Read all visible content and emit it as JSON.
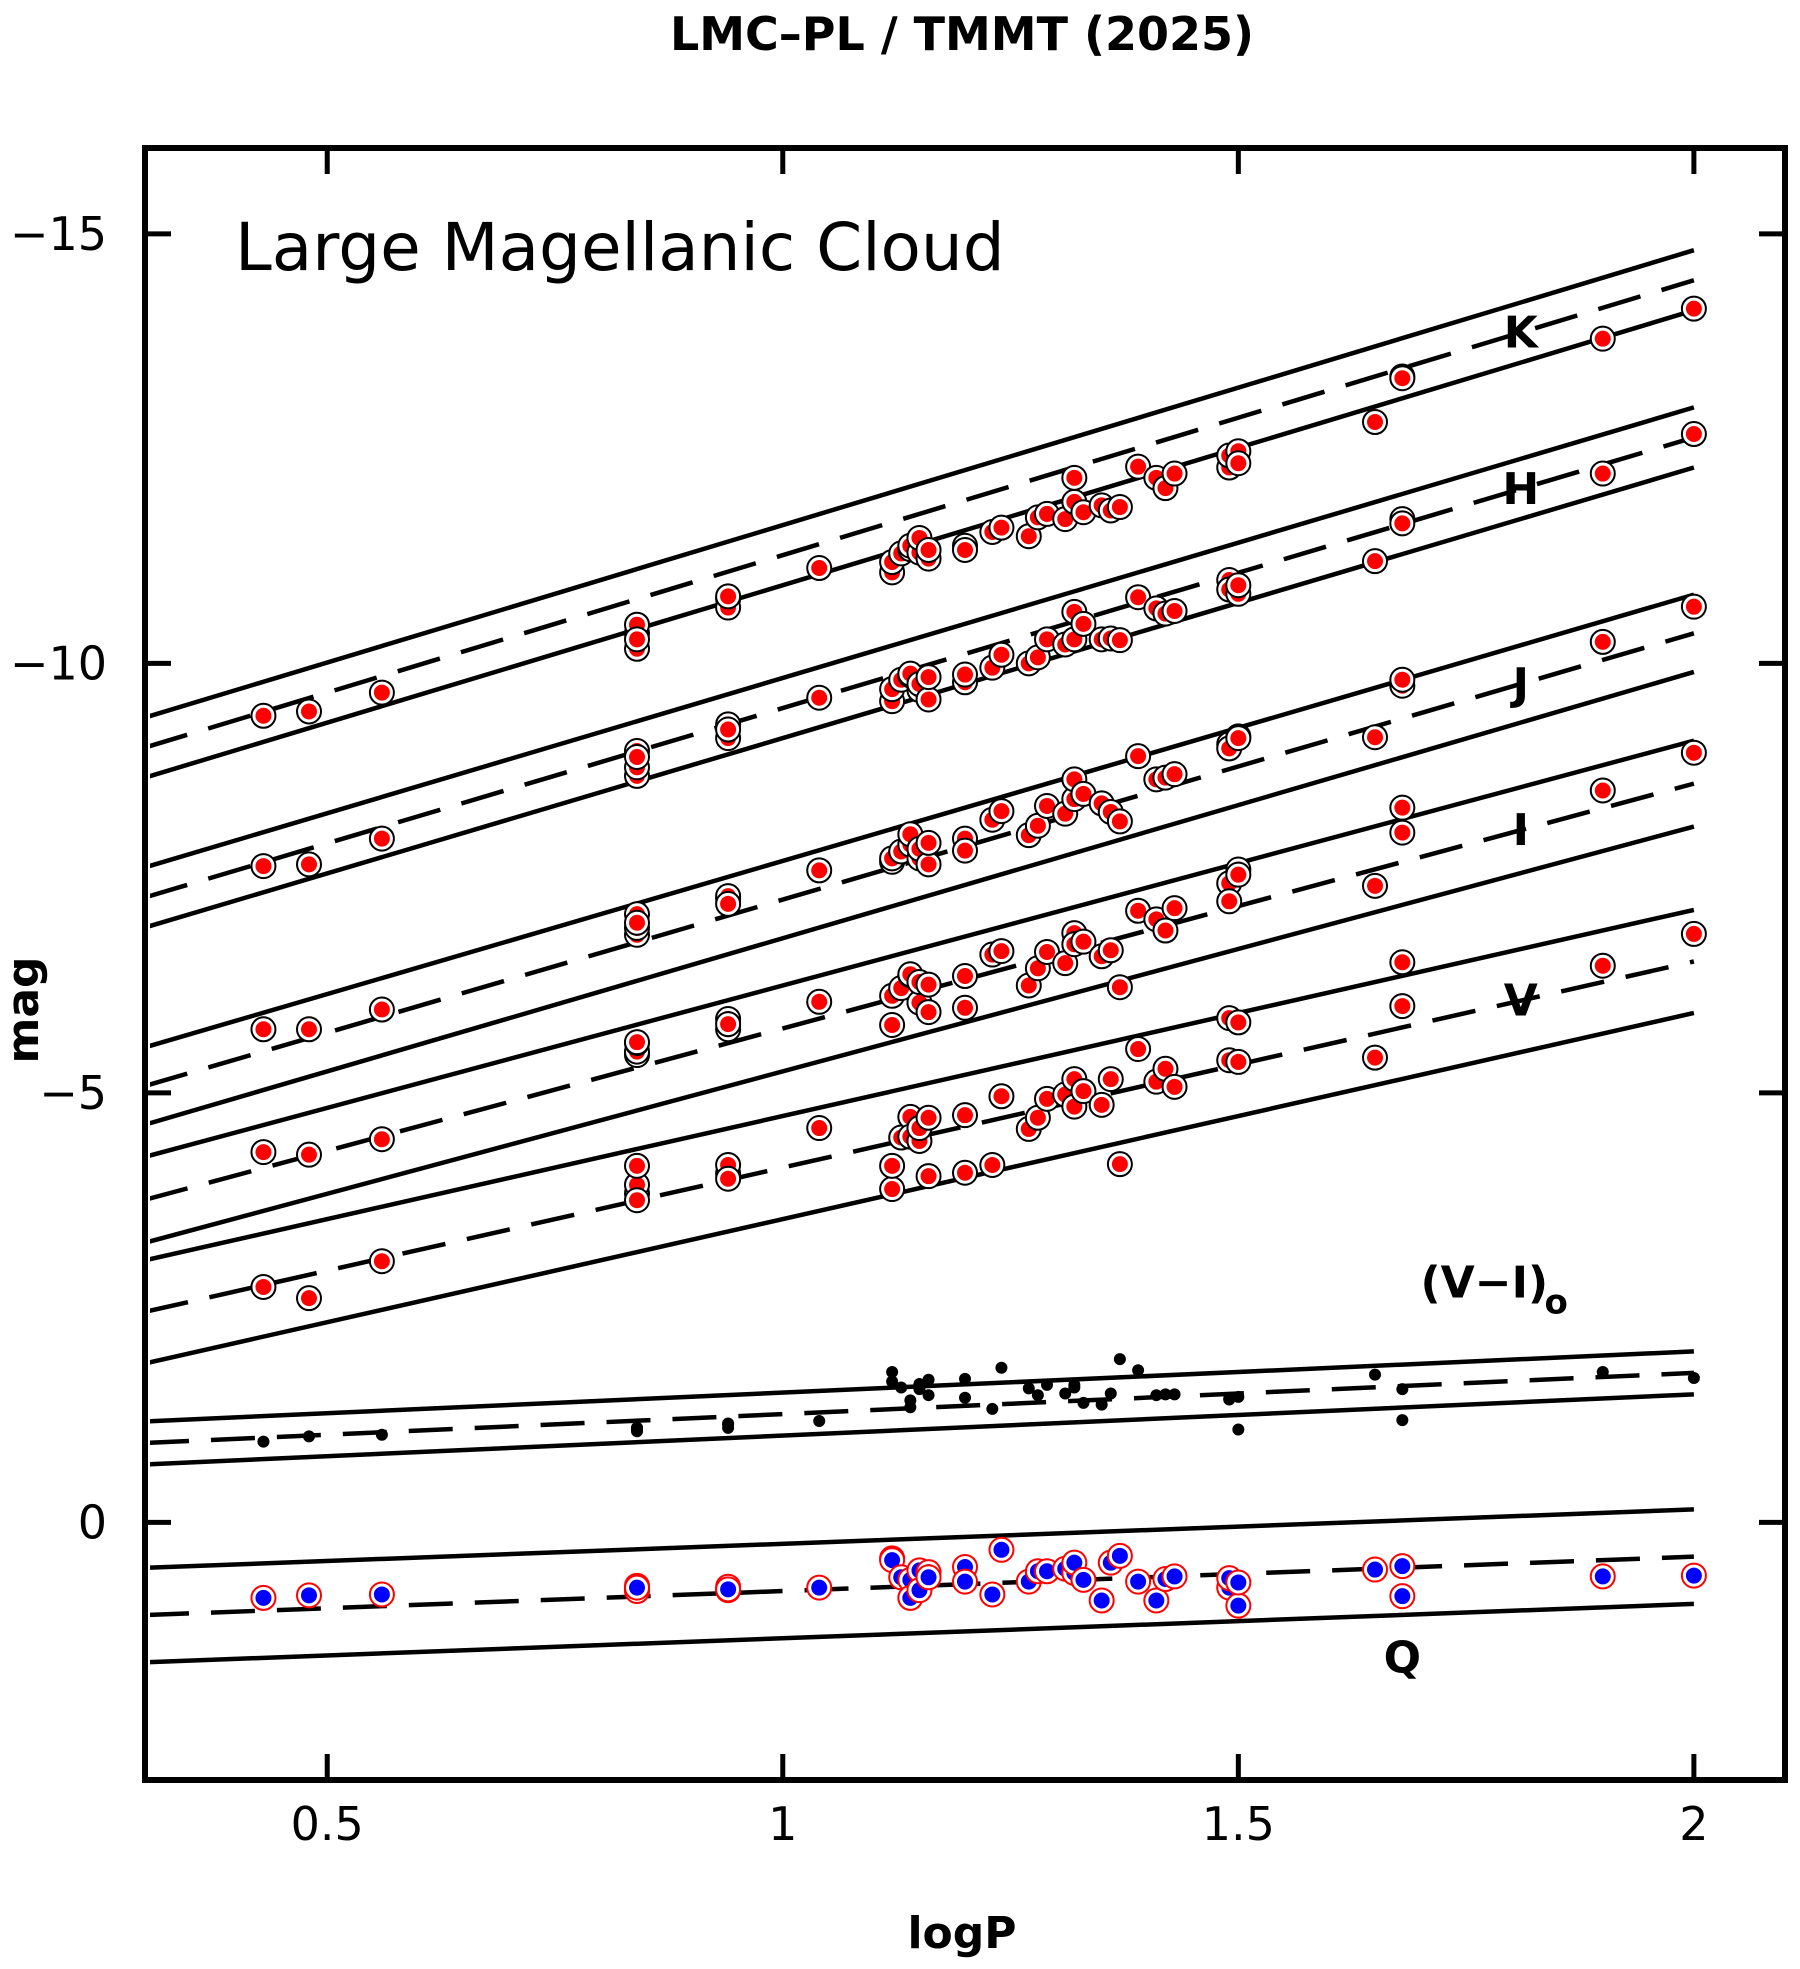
{
  "chart_data": {
    "type": "scatter",
    "title": "LMC–PL / TMMT (2025)",
    "panel_label": "Large Magellanic Cloud",
    "xlabel": "logP",
    "ylabel": "mag",
    "xlim": [
      0.3,
      2.1
    ],
    "ylim": [
      3.0,
      -16.0
    ],
    "y_inverted": true,
    "grid": false,
    "x_ticks": [
      {
        "value": 0.5,
        "label": "0.5"
      },
      {
        "value": 1.0,
        "label": "1"
      },
      {
        "value": 1.5,
        "label": "1.5"
      },
      {
        "value": 2.0,
        "label": "2"
      }
    ],
    "y_ticks": [
      {
        "value": -15,
        "label": "−15"
      },
      {
        "value": -10,
        "label": "−10"
      },
      {
        "value": -5,
        "label": "−5"
      },
      {
        "value": 0,
        "label": "0"
      }
    ],
    "x": [
      0.43,
      0.48,
      0.56,
      0.84,
      0.84,
      0.84,
      0.84,
      0.94,
      0.94,
      0.94,
      1.04,
      1.12,
      1.12,
      1.13,
      1.14,
      1.14,
      1.15,
      1.15,
      1.16,
      1.16,
      1.2,
      1.2,
      1.23,
      1.24,
      1.27,
      1.28,
      1.29,
      1.31,
      1.32,
      1.32,
      1.33,
      1.35,
      1.36,
      1.37,
      1.39,
      1.41,
      1.42,
      1.43,
      1.49,
      1.49,
      1.5,
      1.5,
      1.65,
      1.68,
      1.68,
      1.9,
      2.0
    ],
    "series": [
      {
        "name": "K",
        "label_x": 1.81,
        "fit": {
          "intercept": -8.06,
          "slope": -3.2
        },
        "band_halfwidth": 0.35,
        "marker": "red",
        "values": [
          -9.39,
          -9.44,
          -9.66,
          -10.17,
          -10.35,
          -10.45,
          -10.28,
          -10.75,
          -10.65,
          -10.78,
          -11.11,
          -11.06,
          -11.18,
          -11.28,
          -11.33,
          -11.37,
          -11.29,
          -11.46,
          -11.22,
          -11.32,
          -11.37,
          -11.32,
          -11.53,
          -11.58,
          -11.48,
          -11.7,
          -11.74,
          -11.68,
          -11.88,
          -12.16,
          -11.76,
          -11.84,
          -11.78,
          -11.82,
          -12.29,
          -12.16,
          -12.04,
          -12.21,
          -12.28,
          -12.42,
          -12.47,
          -12.33,
          -12.81,
          -13.34,
          -13.32,
          -13.78,
          -14.13
        ]
      },
      {
        "name": "H",
        "label_x": 1.81,
        "fit": {
          "intercept": -6.33,
          "slope": -3.15
        },
        "band_halfwidth": 0.35,
        "marker": "red",
        "values": [
          -7.64,
          -7.66,
          -7.96,
          -8.69,
          -8.79,
          -8.98,
          -8.91,
          -9.13,
          -9.29,
          -9.23,
          -9.6,
          -9.56,
          -9.7,
          -9.81,
          -9.86,
          -9.88,
          -9.69,
          -9.76,
          -9.58,
          -9.84,
          -9.78,
          -9.87,
          -9.95,
          -10.1,
          -10.0,
          -10.07,
          -10.28,
          -10.22,
          -10.28,
          -10.6,
          -10.46,
          -10.28,
          -10.29,
          -10.27,
          -10.77,
          -10.64,
          -10.58,
          -10.61,
          -10.97,
          -10.86,
          -10.81,
          -10.91,
          -11.19,
          -11.68,
          -11.63,
          -12.21,
          -12.67
        ]
      },
      {
        "name": "J",
        "label_x": 1.81,
        "fit": {
          "intercept": -4.15,
          "slope": -3.1
        },
        "band_halfwidth": 0.45,
        "marker": "red",
        "values": [
          -5.74,
          -5.74,
          -5.97,
          -6.84,
          -6.92,
          -7.08,
          -6.98,
          -7.26,
          -7.29,
          -7.2,
          -7.59,
          -7.69,
          -7.73,
          -7.81,
          -7.89,
          -8.01,
          -7.73,
          -7.84,
          -7.66,
          -7.91,
          -7.96,
          -7.82,
          -8.18,
          -8.28,
          -8.0,
          -8.11,
          -8.34,
          -8.25,
          -8.42,
          -8.65,
          -8.48,
          -8.37,
          -8.27,
          -8.16,
          -8.92,
          -8.65,
          -8.67,
          -8.71,
          -9.06,
          -9.01,
          -9.15,
          -9.13,
          -9.14,
          -9.74,
          -9.81,
          -10.25,
          -10.66
        ]
      },
      {
        "name": "I",
        "label_x": 1.81,
        "fit": {
          "intercept": -2.9,
          "slope": -2.85
        },
        "band_halfwidth": 0.5,
        "marker": "red",
        "values": [
          -4.31,
          -4.28,
          -4.46,
          -5.44,
          -5.48,
          -5.58,
          -5.59,
          -5.74,
          -5.86,
          -5.8,
          -6.06,
          -5.79,
          -6.13,
          -6.22,
          -6.37,
          -6.38,
          -6.05,
          -6.29,
          -5.94,
          -6.26,
          -5.99,
          -6.36,
          -6.61,
          -6.65,
          -6.25,
          -6.45,
          -6.64,
          -6.51,
          -6.86,
          -6.73,
          -6.76,
          -6.59,
          -6.66,
          -6.23,
          -7.12,
          -7.02,
          -6.89,
          -7.15,
          -7.44,
          -7.23,
          -7.6,
          -7.54,
          -7.41,
          -8.03,
          -8.32,
          -8.52,
          -8.96
        ]
      },
      {
        "name": "V",
        "label_x": 1.81,
        "fit": {
          "intercept": -1.73,
          "slope": -2.4
        },
        "band_halfwidth": 0.6,
        "marker": "red",
        "values": [
          -2.74,
          -2.61,
          -3.04,
          -3.83,
          -3.93,
          -3.75,
          -4.15,
          -4.06,
          -4.16,
          -4.0,
          -4.59,
          -3.88,
          -4.15,
          -4.48,
          -4.72,
          -4.49,
          -4.44,
          -4.59,
          -4.03,
          -4.71,
          -4.07,
          -4.74,
          -4.16,
          -4.96,
          -4.58,
          -4.71,
          -4.93,
          -4.98,
          -4.84,
          -5.16,
          -5.02,
          -4.86,
          -5.16,
          -4.17,
          -5.51,
          -5.13,
          -5.28,
          -5.07,
          -5.38,
          -5.87,
          -5.82,
          -5.36,
          -5.41,
          -6.01,
          -6.52,
          -6.48,
          -6.85
        ]
      },
      {
        "name": "Q",
        "label_x": 1.68,
        "label_y": 1.75,
        "fit": {
          "intercept": 1.2,
          "slope": -0.4
        },
        "band_halfwidth": 0.55,
        "marker": "blue",
        "values": [
          0.88,
          0.85,
          0.84,
          0.74,
          0.78,
          0.8,
          0.76,
          0.75,
          0.79,
          0.78,
          0.76,
          0.42,
          0.44,
          0.64,
          0.67,
          0.88,
          0.56,
          0.79,
          0.58,
          0.64,
          0.52,
          0.69,
          0.84,
          0.32,
          0.69,
          0.57,
          0.57,
          0.54,
          0.59,
          0.47,
          0.67,
          0.91,
          0.47,
          0.39,
          0.69,
          0.91,
          0.66,
          0.63,
          0.76,
          0.65,
          0.97,
          0.7,
          0.55,
          0.86,
          0.51,
          0.63,
          0.62
        ]
      },
      {
        "name": "(V−I)o",
        "label_x": 1.7,
        "label_y": -2.62,
        "fit": {
          "intercept": -0.78,
          "slope": -0.48
        },
        "band_halfwidth": 0.25,
        "marker": "black",
        "values": [
          -0.94,
          -1.0,
          -1.02,
          -1.08,
          -1.1,
          -1.06,
          -1.1,
          -1.14,
          -1.1,
          -1.15,
          -1.18,
          -1.75,
          -1.64,
          -1.57,
          -1.34,
          -1.42,
          -1.61,
          -1.55,
          -1.66,
          -1.48,
          -1.45,
          -1.67,
          -1.32,
          -1.8,
          -1.56,
          -1.48,
          -1.6,
          -1.5,
          -1.6,
          -1.57,
          -1.39,
          -1.37,
          -1.5,
          -1.9,
          -1.77,
          -1.48,
          -1.49,
          -1.49,
          -1.44,
          -1.43,
          -1.08,
          -1.46,
          -1.72,
          -1.55,
          -1.19,
          -1.75,
          -1.68
        ]
      }
    ]
  }
}
